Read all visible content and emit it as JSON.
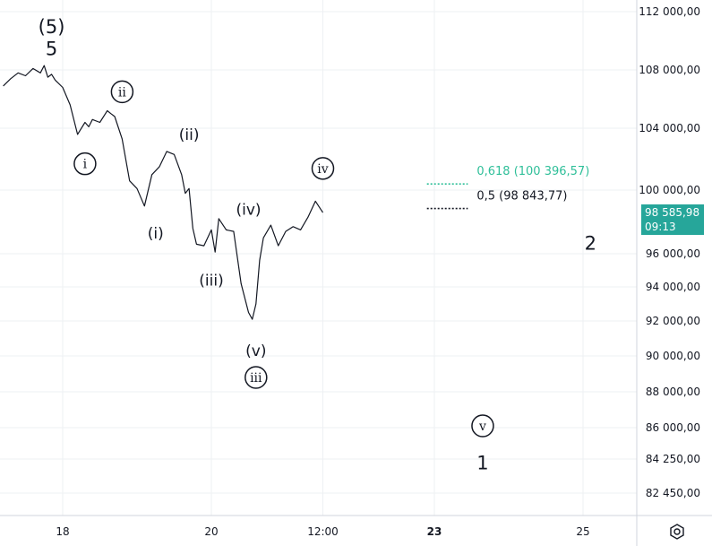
{
  "chart_data": {
    "type": "line",
    "title": "",
    "xlabel": "",
    "ylabel": "",
    "y_ticks": [
      "112 000,00",
      "108 000,00",
      "104 000,00",
      "100 000,00",
      "96 000,00",
      "94 000,00",
      "92 000,00",
      "90 000,00",
      "88 000,00",
      "86 000,00",
      "84 250,00",
      "82 450,00"
    ],
    "y_tick_values": [
      112000,
      108000,
      104000,
      100000,
      96000,
      94000,
      92000,
      90000,
      88000,
      86000,
      84250,
      82450
    ],
    "x_ticks": [
      "18",
      "20",
      "12:00",
      "23",
      "25"
    ],
    "x_tick_values": [
      18,
      20,
      21.5,
      23,
      25
    ],
    "x_tick_bold": [
      false,
      false,
      false,
      true,
      false
    ],
    "grid": true,
    "series": [
      {
        "x": [
          17.2,
          17.3,
          17.4,
          17.5,
          17.6,
          17.7,
          17.75,
          17.8,
          17.85,
          17.9,
          18.0,
          18.1,
          18.2,
          18.3,
          18.35,
          18.4,
          18.5,
          18.6,
          18.65,
          18.7,
          18.8,
          18.9,
          19.0,
          19.1,
          19.2,
          19.3,
          19.4,
          19.5,
          19.6,
          19.65,
          19.7,
          19.75,
          19.8,
          19.9,
          20.0,
          20.05,
          20.1,
          20.2,
          20.3,
          20.4,
          20.5,
          20.55,
          20.6,
          20.65,
          20.7,
          20.8,
          20.9,
          21.0,
          21.1,
          21.2,
          21.3,
          21.4,
          21.5
        ],
        "y": [
          106900,
          107400,
          107800,
          107600,
          108100,
          107800,
          108300,
          107500,
          107700,
          107300,
          106800,
          105600,
          103600,
          104400,
          104100,
          104600,
          104400,
          105200,
          105000,
          104800,
          103300,
          100600,
          100100,
          99000,
          101000,
          101500,
          102500,
          102300,
          101000,
          99800,
          100100,
          97600,
          96600,
          96500,
          97500,
          96100,
          98200,
          97500,
          97400,
          94200,
          92500,
          92100,
          93000,
          95600,
          97000,
          97800,
          96500,
          97400,
          97700,
          97500,
          98300,
          99300,
          98586
        ]
      }
    ],
    "wave_labels": [
      {
        "text": "(5)",
        "style": "big",
        "x": 17.85,
        "y": 110900
      },
      {
        "text": "5",
        "style": "big",
        "x": 17.85,
        "y": 109400
      },
      {
        "text": "i",
        "style": "circle",
        "x": 18.3,
        "y": 101700
      },
      {
        "text": "ii",
        "style": "circle",
        "x": 18.8,
        "y": 106500
      },
      {
        "text": "(i)",
        "style": "paren",
        "x": 19.25,
        "y": 97300
      },
      {
        "text": "(ii)",
        "style": "paren",
        "x": 19.7,
        "y": 103600
      },
      {
        "text": "(iii)",
        "style": "paren",
        "x": 20.0,
        "y": 94400
      },
      {
        "text": "(iv)",
        "style": "paren",
        "x": 20.5,
        "y": 98800
      },
      {
        "text": "(v)",
        "style": "paren",
        "x": 20.6,
        "y": 90300
      },
      {
        "text": "iii",
        "style": "circle",
        "x": 20.6,
        "y": 88800
      },
      {
        "text": "iv",
        "style": "circle",
        "x": 21.5,
        "y": 101400
      },
      {
        "text": "v",
        "style": "circle",
        "x": 23.65,
        "y": 86100
      },
      {
        "text": "1",
        "style": "big",
        "x": 23.65,
        "y": 84000
      },
      {
        "text": "2",
        "style": "big",
        "x": 25.1,
        "y": 96600
      }
    ],
    "fib_levels": [
      {
        "ratio_label": "0,618 (100 396,57)",
        "value": 100396.57,
        "color": "#2fbf99",
        "x_start": 22.9,
        "x_end": 23.45
      },
      {
        "ratio_label": "0,5 (98 843,77)",
        "value": 98843.77,
        "color": "#131722",
        "x_start": 22.9,
        "x_end": 23.45
      }
    ],
    "last_price": {
      "price": "98 585,98",
      "countdown": "09:13",
      "color": "#26a69a"
    }
  }
}
